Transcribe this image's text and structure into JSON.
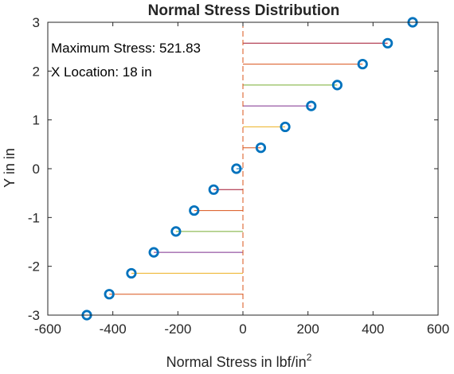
{
  "chart_data": {
    "type": "stem",
    "title": "Normal Stress Distribution",
    "xlabel": "Normal Stress in lbf/in",
    "xlabel_superscript": "2",
    "ylabel": "Y in in",
    "xlim": [
      -600,
      600
    ],
    "ylim": [
      -3,
      3
    ],
    "xticks": [
      -600,
      -400,
      -200,
      0,
      200,
      400,
      600
    ],
    "yticks": [
      -3,
      -2,
      -1,
      0,
      1,
      2,
      3
    ],
    "xtick_labels": [
      "-600",
      "-400",
      "-200",
      "0",
      "200",
      "400",
      "600"
    ],
    "ytick_labels": [
      "-3",
      "-2",
      "-1",
      "0",
      "1",
      "2",
      "3"
    ],
    "grid": false,
    "orientation": "horizontal",
    "baseline_x": 0,
    "baseline_style": "dashed",
    "baseline_color": "#d95319",
    "marker_color": "#0072bd",
    "stem_colors": [
      "#0072bd",
      "#d95319",
      "#edb120",
      "#7e2f8e",
      "#77ac30",
      "#d95319",
      "#a2142f"
    ],
    "points": [
      {
        "y": -3.0,
        "x": -480
      },
      {
        "y": -2.571,
        "x": -411
      },
      {
        "y": -2.143,
        "x": -343
      },
      {
        "y": -1.714,
        "x": -274
      },
      {
        "y": -1.286,
        "x": -206
      },
      {
        "y": -0.857,
        "x": -150
      },
      {
        "y": -0.429,
        "x": -90
      },
      {
        "y": 0.0,
        "x": -20
      },
      {
        "y": 0.429,
        "x": 55
      },
      {
        "y": 0.857,
        "x": 130
      },
      {
        "y": 1.286,
        "x": 210
      },
      {
        "y": 1.714,
        "x": 290
      },
      {
        "y": 2.143,
        "x": 368
      },
      {
        "y": 2.571,
        "x": 445
      },
      {
        "y": 3.0,
        "x": 521.83
      }
    ],
    "annotations": [
      "Maximum Stress: 521.83",
      "X Location: 18 in"
    ]
  }
}
